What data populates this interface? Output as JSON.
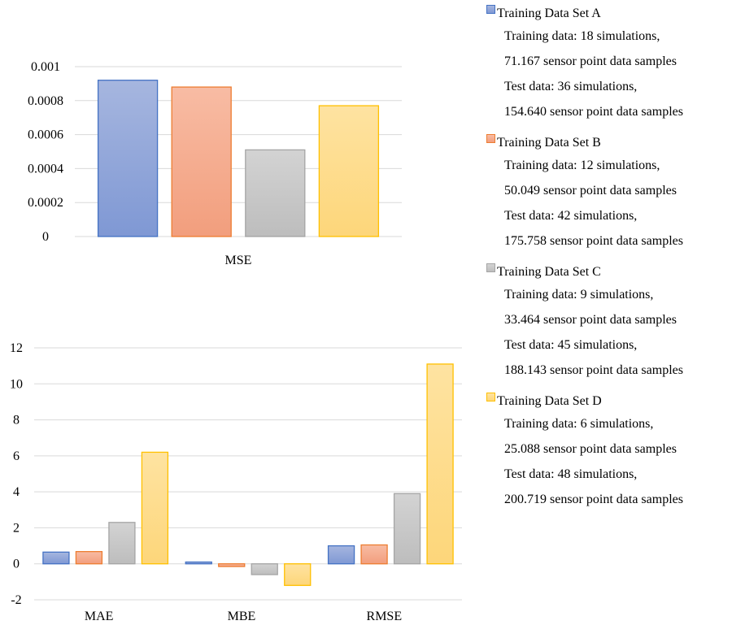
{
  "colors": {
    "A": {
      "fill_top": "#a6b6df",
      "fill_bottom": "#7f98d4",
      "stroke": "#4472c4"
    },
    "B": {
      "fill_top": "#f8bca4",
      "fill_bottom": "#f29e7d",
      "stroke": "#ed7d31"
    },
    "C": {
      "fill_top": "#d3d3d3",
      "fill_bottom": "#bdbdbd",
      "stroke": "#a5a5a5"
    },
    "D": {
      "fill_top": "#fee3a1",
      "fill_bottom": "#fdd67a",
      "stroke": "#ffc000"
    },
    "grid": "#d9d9d9"
  },
  "legend": [
    {
      "key": "A",
      "title": "Training Data Set A",
      "lines": [
        "Training data: 18 simulations,",
        "71.167 sensor point data samples",
        "Test data: 36 simulations,",
        "154.640 sensor point data samples"
      ]
    },
    {
      "key": "B",
      "title": "Training Data Set B",
      "lines": [
        "Training data: 12 simulations,",
        "50.049 sensor point data samples",
        "Test data: 42 simulations,",
        "175.758 sensor point data samples"
      ]
    },
    {
      "key": "C",
      "title": "Training Data Set C",
      "lines": [
        "Training data: 9 simulations,",
        "33.464 sensor point data samples",
        "Test data: 45 simulations,",
        "188.143 sensor point data samples"
      ]
    },
    {
      "key": "D",
      "title": "Training Data Set D",
      "lines": [
        "Training data: 6 simulations,",
        "25.088 sensor point data samples",
        "Test data: 48 simulations,",
        "200.719 sensor point data samples"
      ]
    }
  ],
  "chart_data": [
    {
      "type": "bar",
      "categories": [
        "MSE"
      ],
      "series": [
        {
          "name": "Training Data Set A",
          "key": "A",
          "values": [
            0.00092
          ]
        },
        {
          "name": "Training Data Set B",
          "key": "B",
          "values": [
            0.00088
          ]
        },
        {
          "name": "Training Data Set C",
          "key": "C",
          "values": [
            0.00051
          ]
        },
        {
          "name": "Training Data Set D",
          "key": "D",
          "values": [
            0.00077
          ]
        }
      ],
      "yticks": [
        "0",
        "0.0002",
        "0.0004",
        "0.0006",
        "0.0008",
        "0.001"
      ],
      "ylim": [
        0,
        0.001
      ],
      "grid": true,
      "legend": "right"
    },
    {
      "type": "bar",
      "categories": [
        "MAE",
        "MBE",
        "RMSE"
      ],
      "series": [
        {
          "name": "Training Data Set A",
          "key": "A",
          "values": [
            0.65,
            0.1,
            1.0
          ]
        },
        {
          "name": "Training Data Set B",
          "key": "B",
          "values": [
            0.68,
            -0.15,
            1.05
          ]
        },
        {
          "name": "Training Data Set C",
          "key": "C",
          "values": [
            2.3,
            -0.6,
            3.9
          ]
        },
        {
          "name": "Training Data Set D",
          "key": "D",
          "values": [
            6.2,
            -1.2,
            11.1
          ]
        }
      ],
      "yticks": [
        "-2",
        "0",
        "2",
        "4",
        "6",
        "8",
        "10",
        "12"
      ],
      "ylim": [
        -2,
        12
      ],
      "grid": true,
      "legend": "right"
    }
  ]
}
